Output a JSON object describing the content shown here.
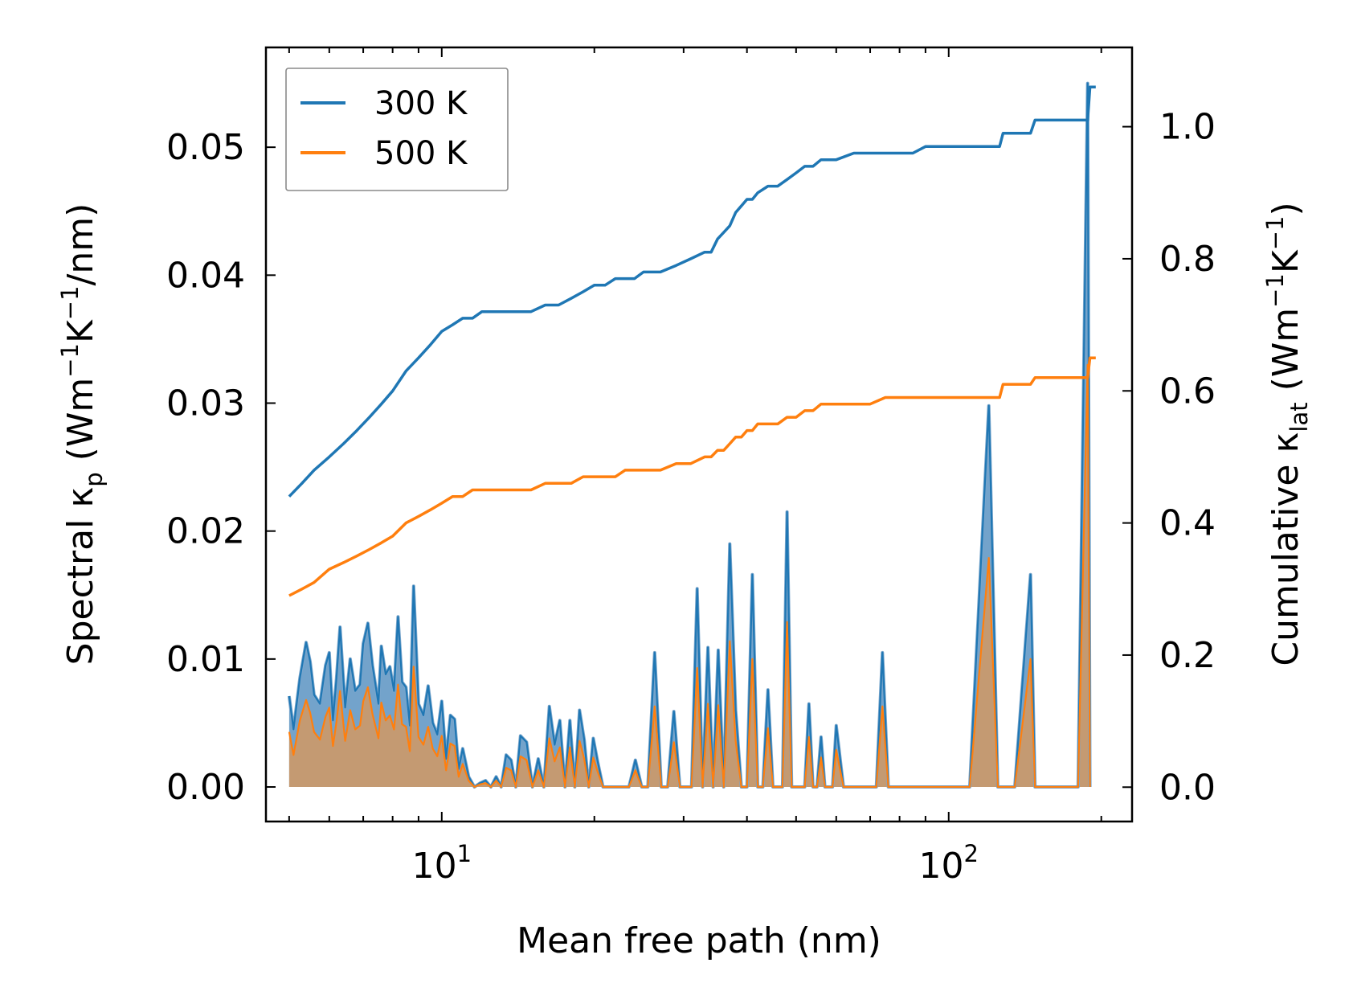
{
  "chart_data": {
    "type": "line",
    "x_scale": "log",
    "xlabel": "Mean free path (nm)",
    "ylabel_left": {
      "main": "Spectral κ",
      "sub": "p",
      "units_a": " (Wm",
      "sup1": "−1",
      "units_b": "K",
      "sup2": "−1",
      "units_c": "/nm)"
    },
    "ylabel_right": {
      "main": "Cumulative κ",
      "sub": "lat",
      "units_a": " (Wm",
      "sup1": "−1",
      "units_b": "K",
      "sup2": "−1",
      "units_c": ")"
    },
    "xlim": [
      4.5,
      230
    ],
    "ylim_left": [
      -0.0027,
      0.0578
    ],
    "ylim_right": [
      -0.052,
      1.12
    ],
    "x_ticks": [
      {
        "value": 10,
        "base": "10",
        "exp": "1"
      },
      {
        "value": 100,
        "base": "10",
        "exp": "2"
      }
    ],
    "y_left_ticks": [
      {
        "value": 0.0,
        "label": "0.00"
      },
      {
        "value": 0.01,
        "label": "0.01"
      },
      {
        "value": 0.02,
        "label": "0.02"
      },
      {
        "value": 0.03,
        "label": "0.03"
      },
      {
        "value": 0.04,
        "label": "0.04"
      },
      {
        "value": 0.05,
        "label": "0.05"
      }
    ],
    "y_right_ticks": [
      {
        "value": 0.0,
        "label": "0.0"
      },
      {
        "value": 0.2,
        "label": "0.2"
      },
      {
        "value": 0.4,
        "label": "0.4"
      },
      {
        "value": 0.6,
        "label": "0.6"
      },
      {
        "value": 0.8,
        "label": "0.8"
      },
      {
        "value": 1.0,
        "label": "1.0"
      }
    ],
    "legend": {
      "position": "upper-left",
      "entries": [
        "300 K",
        "500 K"
      ]
    },
    "colors": {
      "s300": "#1f77b4",
      "s500": "#ff7f0e",
      "fill300": "#5b93c2",
      "fill500": "#c89a6d"
    },
    "spectral": {
      "x": [
        5.0,
        5.1,
        5.25,
        5.4,
        5.5,
        5.6,
        5.75,
        5.9,
        6.0,
        6.1,
        6.2,
        6.3,
        6.45,
        6.6,
        6.75,
        6.9,
        7.0,
        7.15,
        7.3,
        7.5,
        7.6,
        7.75,
        7.9,
        8.05,
        8.2,
        8.35,
        8.5,
        8.65,
        8.8,
        9.0,
        9.2,
        9.4,
        9.6,
        9.8,
        10.0,
        10.2,
        10.4,
        10.6,
        10.8,
        11.0,
        11.3,
        11.6,
        11.9,
        12.2,
        12.5,
        12.8,
        13.1,
        13.4,
        13.7,
        14.0,
        14.3,
        14.7,
        15.1,
        15.5,
        15.9,
        16.3,
        16.7,
        17.1,
        17.5,
        17.9,
        18.3,
        18.7,
        19.1,
        19.5,
        19.9,
        20.3,
        20.8,
        21.4,
        22.0,
        22.7,
        23.4,
        24.1,
        24.8,
        25.5,
        26.3,
        27.1,
        27.9,
        28.7,
        29.5,
        30.3,
        31.1,
        31.9,
        32.7,
        33.5,
        34.3,
        35.1,
        36.0,
        37.0,
        38.0,
        39.0,
        40.0,
        41.0,
        42.0,
        43.0,
        44.0,
        45.0,
        46.0,
        47.0,
        48.0,
        49.0,
        50.0,
        51.0,
        52.0,
        53.0,
        54.0,
        55.0,
        56.0,
        57.0,
        58.0,
        59.0,
        60.0,
        62.0,
        64.0,
        66.0,
        68.0,
        70.0,
        72.0,
        74.0,
        76.0,
        78.0,
        84.0,
        88.0,
        90.0,
        92.0,
        96.0,
        100.0,
        110.0,
        120.0,
        125.0,
        127.0,
        129.0,
        135.0,
        145.0,
        148.0,
        150.0,
        155.0,
        165.0,
        180.0,
        188.0,
        190.0,
        192.0,
        195.0
      ],
      "y300": [
        0.0071,
        0.0045,
        0.0085,
        0.0113,
        0.0098,
        0.0072,
        0.0065,
        0.0095,
        0.0105,
        0.0052,
        0.0085,
        0.0125,
        0.0062,
        0.01,
        0.0075,
        0.008,
        0.0112,
        0.0128,
        0.0095,
        0.0065,
        0.011,
        0.0088,
        0.0094,
        0.0075,
        0.0133,
        0.0082,
        0.0078,
        0.0048,
        0.0157,
        0.0065,
        0.0056,
        0.0079,
        0.005,
        0.0041,
        0.0067,
        0.0022,
        0.0056,
        0.0053,
        0.0014,
        0.003,
        0.0008,
        0.0,
        0.0003,
        0.0005,
        0.0,
        0.0008,
        0.0,
        0.0025,
        0.0021,
        0.0,
        0.004,
        0.0035,
        0.0,
        0.0022,
        0.0,
        0.0063,
        0.0033,
        0.0052,
        0.0,
        0.0052,
        0.0,
        0.006,
        0.0037,
        0.0,
        0.0038,
        0.002,
        0.0,
        0.0,
        0.0,
        0.0,
        0.0,
        0.0021,
        0.0,
        0.0,
        0.0105,
        0.0,
        0.0,
        0.0059,
        0.0,
        0.0,
        0.0,
        0.0155,
        0.0,
        0.0109,
        0.0,
        0.0107,
        0.0,
        0.019,
        0.006,
        0.0,
        0.0,
        0.0166,
        0.0,
        0.0,
        0.0076,
        0.0,
        0.0,
        0.0,
        0.0215,
        0.0,
        0.0,
        0.0,
        0.0,
        0.0065,
        0.0,
        0.0,
        0.0039,
        0.0,
        0.0,
        0.0,
        0.0048,
        0.0,
        0.0,
        0.0,
        0.0,
        0.0,
        0.0,
        0.0105,
        0.0,
        0.0,
        0.0,
        0.0,
        0.0,
        0.0,
        0.0,
        0.0,
        0.0,
        0.0298,
        0.0,
        0.0,
        0.0,
        0.0,
        0.0166,
        0.0,
        0.0,
        0.0,
        0.0,
        0.0,
        0.055,
        0.0
      ],
      "y500": [
        0.0043,
        0.0025,
        0.0052,
        0.0068,
        0.0058,
        0.0043,
        0.0037,
        0.0055,
        0.0062,
        0.0032,
        0.0051,
        0.0075,
        0.0036,
        0.006,
        0.0045,
        0.0048,
        0.0067,
        0.0078,
        0.0057,
        0.0038,
        0.0066,
        0.0052,
        0.0056,
        0.0045,
        0.008,
        0.0049,
        0.0047,
        0.0028,
        0.0094,
        0.0039,
        0.0033,
        0.0047,
        0.003,
        0.0024,
        0.004,
        0.0013,
        0.0034,
        0.0032,
        0.0008,
        0.0018,
        0.0005,
        0.0,
        0.0002,
        0.0003,
        0.0,
        0.0005,
        0.0,
        0.0015,
        0.0013,
        0.0,
        0.0024,
        0.0021,
        0.0,
        0.0013,
        0.0,
        0.0038,
        0.002,
        0.0031,
        0.0,
        0.0031,
        0.0,
        0.0036,
        0.0022,
        0.0,
        0.0023,
        0.0012,
        0.0,
        0.0,
        0.0,
        0.0,
        0.0,
        0.0013,
        0.0,
        0.0,
        0.0063,
        0.0,
        0.0,
        0.0035,
        0.0,
        0.0,
        0.0,
        0.0093,
        0.0,
        0.0065,
        0.0,
        0.0064,
        0.0,
        0.0114,
        0.0036,
        0.0,
        0.0,
        0.01,
        0.0,
        0.0,
        0.0046,
        0.0,
        0.0,
        0.0,
        0.0129,
        0.0,
        0.0,
        0.0,
        0.0,
        0.0039,
        0.0,
        0.0,
        0.0023,
        0.0,
        0.0,
        0.0,
        0.0029,
        0.0,
        0.0,
        0.0,
        0.0,
        0.0,
        0.0,
        0.0063,
        0.0,
        0.0,
        0.0,
        0.0,
        0.0,
        0.0,
        0.0,
        0.0,
        0.0,
        0.0179,
        0.0,
        0.0,
        0.0,
        0.0,
        0.01,
        0.0,
        0.0,
        0.0,
        0.0,
        0.0,
        0.033,
        0.0
      ]
    },
    "cumulative": {
      "x": [
        5.0,
        5.3,
        5.6,
        6.0,
        6.4,
        6.8,
        7.2,
        7.6,
        8.0,
        8.5,
        9.0,
        9.5,
        10.0,
        10.5,
        11.0,
        11.5,
        12.0,
        13.0,
        14.0,
        15.0,
        16.0,
        17.0,
        18.0,
        19.0,
        20.0,
        21.0,
        22.0,
        23.0,
        24.0,
        25.0,
        27.0,
        29.0,
        31.0,
        33.0,
        34.0,
        35.0,
        36.0,
        37.0,
        38.0,
        39.0,
        40.0,
        41.0,
        42.0,
        44.0,
        46.0,
        48.0,
        50.0,
        52.0,
        54.0,
        56.0,
        58.0,
        60.0,
        65.0,
        70.0,
        75.0,
        80.0,
        85.0,
        90.0,
        100.0,
        110.0,
        120.0,
        126.0,
        128.0,
        135.0,
        145.0,
        148.0,
        155.0,
        170.0,
        185.0,
        188.0,
        190.0,
        195.0
      ],
      "y300": [
        0.44,
        0.46,
        0.48,
        0.5,
        0.52,
        0.54,
        0.56,
        0.58,
        0.6,
        0.63,
        0.65,
        0.67,
        0.69,
        0.7,
        0.71,
        0.71,
        0.72,
        0.72,
        0.72,
        0.72,
        0.73,
        0.73,
        0.74,
        0.75,
        0.76,
        0.76,
        0.77,
        0.77,
        0.77,
        0.78,
        0.78,
        0.79,
        0.8,
        0.81,
        0.81,
        0.83,
        0.84,
        0.85,
        0.87,
        0.88,
        0.89,
        0.89,
        0.9,
        0.91,
        0.91,
        0.92,
        0.93,
        0.94,
        0.94,
        0.95,
        0.95,
        0.95,
        0.96,
        0.96,
        0.96,
        0.96,
        0.96,
        0.97,
        0.97,
        0.97,
        0.97,
        0.97,
        0.99,
        0.99,
        0.99,
        1.01,
        1.01,
        1.01,
        1.01,
        1.01,
        1.06,
        1.06
      ],
      "y500": [
        0.29,
        0.3,
        0.31,
        0.33,
        0.34,
        0.35,
        0.36,
        0.37,
        0.38,
        0.4,
        0.41,
        0.42,
        0.43,
        0.44,
        0.44,
        0.45,
        0.45,
        0.45,
        0.45,
        0.45,
        0.46,
        0.46,
        0.46,
        0.47,
        0.47,
        0.47,
        0.47,
        0.48,
        0.48,
        0.48,
        0.48,
        0.49,
        0.49,
        0.5,
        0.5,
        0.51,
        0.51,
        0.52,
        0.53,
        0.53,
        0.54,
        0.54,
        0.55,
        0.55,
        0.55,
        0.56,
        0.56,
        0.57,
        0.57,
        0.58,
        0.58,
        0.58,
        0.58,
        0.58,
        0.59,
        0.59,
        0.59,
        0.59,
        0.59,
        0.59,
        0.59,
        0.59,
        0.61,
        0.61,
        0.61,
        0.62,
        0.62,
        0.62,
        0.62,
        0.62,
        0.65,
        0.65
      ]
    }
  }
}
